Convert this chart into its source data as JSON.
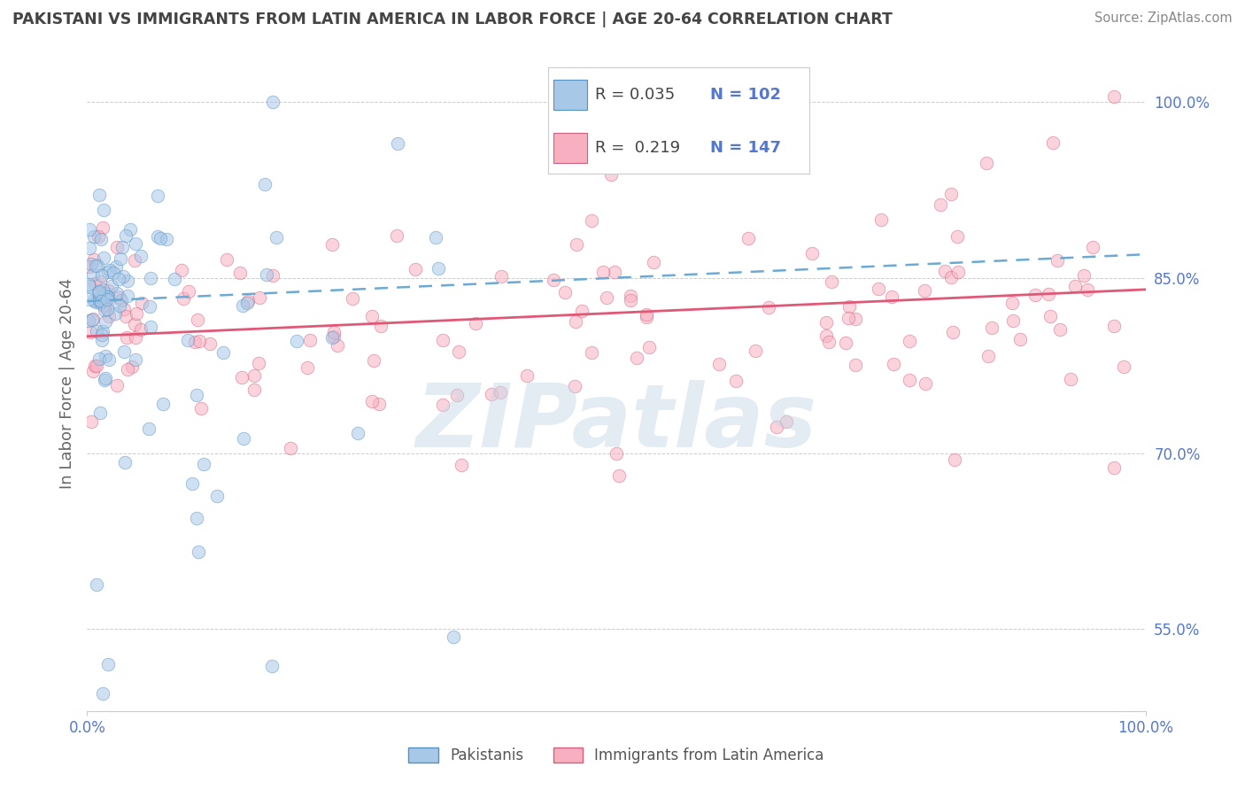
{
  "title": "PAKISTANI VS IMMIGRANTS FROM LATIN AMERICA IN LABOR FORCE | AGE 20-64 CORRELATION CHART",
  "source": "Source: ZipAtlas.com",
  "ylabel": "In Labor Force | Age 20-64",
  "xlim": [
    0,
    1
  ],
  "ylim": [
    0.48,
    1.04
  ],
  "yticks": [
    0.55,
    0.7,
    0.85,
    1.0
  ],
  "ytick_labels": [
    "55.0%",
    "70.0%",
    "85.0%",
    "100.0%"
  ],
  "xticks": [
    0.0,
    1.0
  ],
  "xtick_labels": [
    "0.0%",
    "100.0%"
  ],
  "blue_color": "#a8c8e8",
  "blue_edge_color": "#5590c0",
  "blue_line_color": "#6aaad4",
  "pink_color": "#f8b0c0",
  "pink_edge_color": "#d06080",
  "pink_line_color": "#e05878",
  "watermark_color": "#c8d8e8",
  "bg_color": "#ffffff",
  "grid_color": "#cccccc",
  "title_color": "#444444",
  "axis_label_color": "#5577cc",
  "ylabel_color": "#666666",
  "source_color": "#888888",
  "blue_trend_start": 0.83,
  "blue_trend_end": 0.87,
  "pink_trend_start": 0.8,
  "pink_trend_end": 0.84
}
